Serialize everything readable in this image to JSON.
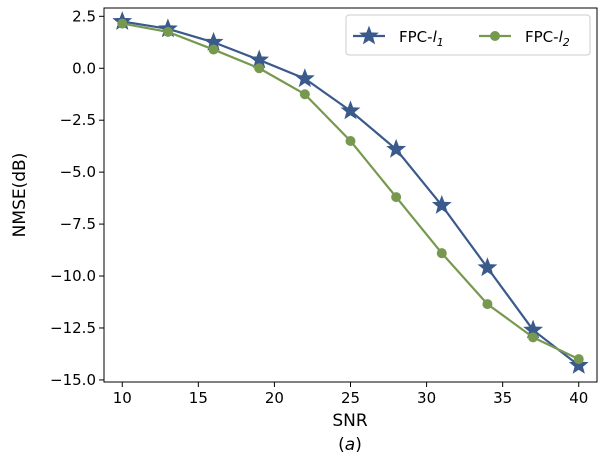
{
  "chart_data": {
    "type": "line",
    "title": "",
    "xlabel": "SNR",
    "ylabel": "NMSE(dB)",
    "caption": "(a)",
    "xlim": [
      8.8,
      41.2
    ],
    "ylim": [
      -15.1,
      2.9
    ],
    "xticks": [
      10,
      15,
      20,
      25,
      30,
      35,
      40
    ],
    "yticks": [
      2.5,
      0.0,
      -2.5,
      -5.0,
      -7.5,
      -10.0,
      -12.5,
      -15.0
    ],
    "ytick_labels": [
      "2.5",
      "0.0",
      "−2.5",
      "−5.0",
      "−7.5",
      "−10.0",
      "−12.5",
      "−15.0"
    ],
    "x": [
      10,
      13,
      16,
      19,
      22,
      25,
      28,
      31,
      34,
      37,
      40
    ],
    "series": [
      {
        "name": "FPC-l1",
        "label_main": "FPC-",
        "label_var": "l",
        "label_sub": "1",
        "color": "#3a5a8c",
        "marker": "star",
        "values": [
          2.25,
          1.9,
          1.25,
          0.4,
          -0.5,
          -2.05,
          -3.9,
          -6.6,
          -9.6,
          -12.6,
          -14.3
        ]
      },
      {
        "name": "FPC-l2",
        "label_main": "FPC-",
        "label_var": "l",
        "label_sub": "2",
        "color": "#77994f",
        "marker": "circle",
        "values": [
          2.15,
          1.75,
          0.9,
          0.0,
          -1.25,
          -3.5,
          -6.2,
          -8.9,
          -11.35,
          -12.95,
          -14.0
        ]
      }
    ],
    "legend_position": "top-right",
    "grid": false
  }
}
